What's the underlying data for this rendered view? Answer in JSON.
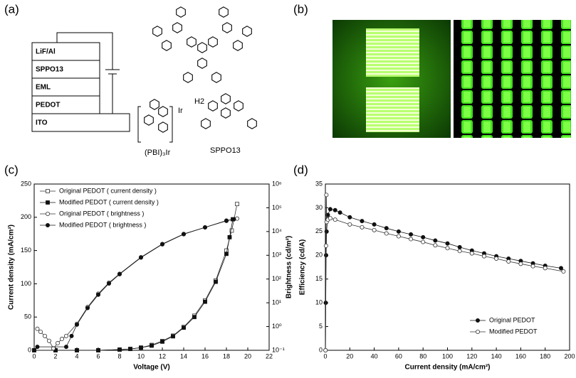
{
  "panel_labels": [
    "(a)",
    "(b)",
    "(c)",
    "(d)"
  ],
  "device": {
    "layers": [
      "LiF/Al",
      "SPPO13",
      "EML",
      "PEDOT",
      "ITO"
    ],
    "molecules": [
      "H2",
      "(PBI)₃Ir",
      "SPPO13"
    ],
    "atom": "Ir"
  },
  "chart_data": [
    {
      "type": "line",
      "xlabel": "Voltage (V)",
      "ylabel": "Current density (mA/cm²)",
      "y2label": "Brightness (cd/m²)",
      "xlim": [
        0,
        22
      ],
      "xticks": [
        0,
        2,
        4,
        6,
        8,
        10,
        12,
        14,
        16,
        18,
        20,
        22
      ],
      "ylim": [
        0,
        250
      ],
      "yticks": [
        0,
        50,
        100,
        150,
        200,
        250
      ],
      "y2lim": [
        0.1,
        1000000
      ],
      "y2scale": "log",
      "y2ticks": [
        {
          "value": 0.1,
          "label": "10⁻¹"
        },
        {
          "value": 1,
          "label": "10⁰"
        },
        {
          "value": 10,
          "label": "10¹"
        },
        {
          "value": 100,
          "label": "10²"
        },
        {
          "value": 1000,
          "label": "10³"
        },
        {
          "value": 10000,
          "label": "10⁴"
        },
        {
          "value": 100000,
          "label": "10⁵"
        },
        {
          "value": 1000000,
          "label": "10⁶"
        }
      ],
      "legend": "upper left",
      "series": [
        {
          "name": "Original PEDOT ( current density )",
          "color": "#333333",
          "marker": "square",
          "filled": false,
          "axis": "y",
          "x": [
            0,
            2,
            4,
            6,
            8,
            9,
            10,
            11,
            12,
            13,
            14,
            15,
            16,
            17,
            18,
            18.5,
            19
          ],
          "values": [
            0,
            0,
            0,
            0,
            1,
            2,
            4,
            8,
            14,
            22,
            35,
            52,
            75,
            105,
            150,
            180,
            220
          ]
        },
        {
          "name": "Modified PEDOT ( current density )",
          "color": "#111111",
          "marker": "square",
          "filled": true,
          "axis": "y",
          "x": [
            0,
            2,
            4,
            6,
            8,
            9,
            10,
            11,
            12,
            13,
            14,
            15,
            16,
            17,
            18,
            18.3,
            18.6
          ],
          "values": [
            0,
            0,
            0,
            0,
            1,
            2,
            4,
            7,
            13,
            21,
            34,
            50,
            73,
            103,
            145,
            170,
            197
          ]
        },
        {
          "name": "Original PEDOT ( brightness )",
          "color": "#333333",
          "marker": "circle",
          "filled": false,
          "axis": "y2",
          "x": [
            0.3,
            0.6,
            1,
            1.4,
            1.8,
            2.2,
            2.6,
            3,
            4,
            5,
            6,
            7,
            8,
            10,
            12,
            14,
            16,
            18,
            19
          ],
          "values": [
            0.8,
            0.6,
            0.4,
            0.25,
            0.12,
            0.2,
            0.3,
            0.4,
            1.3,
            6.6,
            24,
            70,
            166,
            830,
            3000,
            7900,
            15000,
            29000,
            35000
          ]
        },
        {
          "name": "Modified PEDOT ( brightness )",
          "color": "#111111",
          "marker": "circle",
          "filled": true,
          "axis": "y2",
          "x": [
            0.3,
            3,
            3.5,
            4,
            5,
            6,
            7,
            8,
            10,
            12,
            14,
            16,
            18,
            18.7
          ],
          "values": [
            0.14,
            0.14,
            0.4,
            1.2,
            6,
            22,
            65,
            160,
            800,
            2900,
            7700,
            15000,
            28000,
            33000
          ]
        }
      ]
    },
    {
      "type": "line",
      "xlabel": "Current density (mA/cm²)",
      "ylabel": "Efficiency (cd/A)",
      "xlim": [
        0,
        200
      ],
      "xticks": [
        0,
        20,
        40,
        60,
        80,
        100,
        120,
        140,
        160,
        180,
        200
      ],
      "ylim": [
        0,
        35
      ],
      "yticks": [
        0,
        5,
        10,
        15,
        20,
        25,
        30,
        35
      ],
      "legend": "lower right",
      "series": [
        {
          "name": "Original PEDOT",
          "color": "#111111",
          "marker": "circle",
          "filled": true,
          "axis": "y",
          "x": [
            0.1,
            0.3,
            0.6,
            1,
            2,
            4,
            8,
            12,
            20,
            30,
            40,
            50,
            60,
            70,
            80,
            90,
            100,
            110,
            120,
            130,
            140,
            150,
            160,
            170,
            180,
            193
          ],
          "values": [
            0,
            10,
            20,
            25,
            28.5,
            29.7,
            29.5,
            29,
            28,
            27.2,
            26.5,
            25.7,
            25,
            24.4,
            23.8,
            23.1,
            22.5,
            21.7,
            21,
            20.4,
            19.8,
            19.3,
            18.8,
            18.3,
            17.8,
            17.3
          ]
        },
        {
          "name": "Modified PEDOT",
          "color": "#333333",
          "marker": "circle",
          "filled": false,
          "axis": "y",
          "x": [
            0.1,
            0.5,
            0.8,
            1,
            2,
            4,
            8,
            20,
            30,
            40,
            50,
            60,
            70,
            80,
            90,
            100,
            110,
            120,
            130,
            140,
            150,
            160,
            170,
            180,
            195
          ],
          "values": [
            0,
            22,
            32.7,
            27,
            27.5,
            27.8,
            27.5,
            26.5,
            25.9,
            25.3,
            24.6,
            24,
            23.4,
            22.8,
            22.1,
            21.5,
            20.9,
            20.4,
            19.8,
            19.3,
            18.7,
            18.2,
            17.7,
            17.3,
            16.6
          ]
        }
      ]
    }
  ]
}
